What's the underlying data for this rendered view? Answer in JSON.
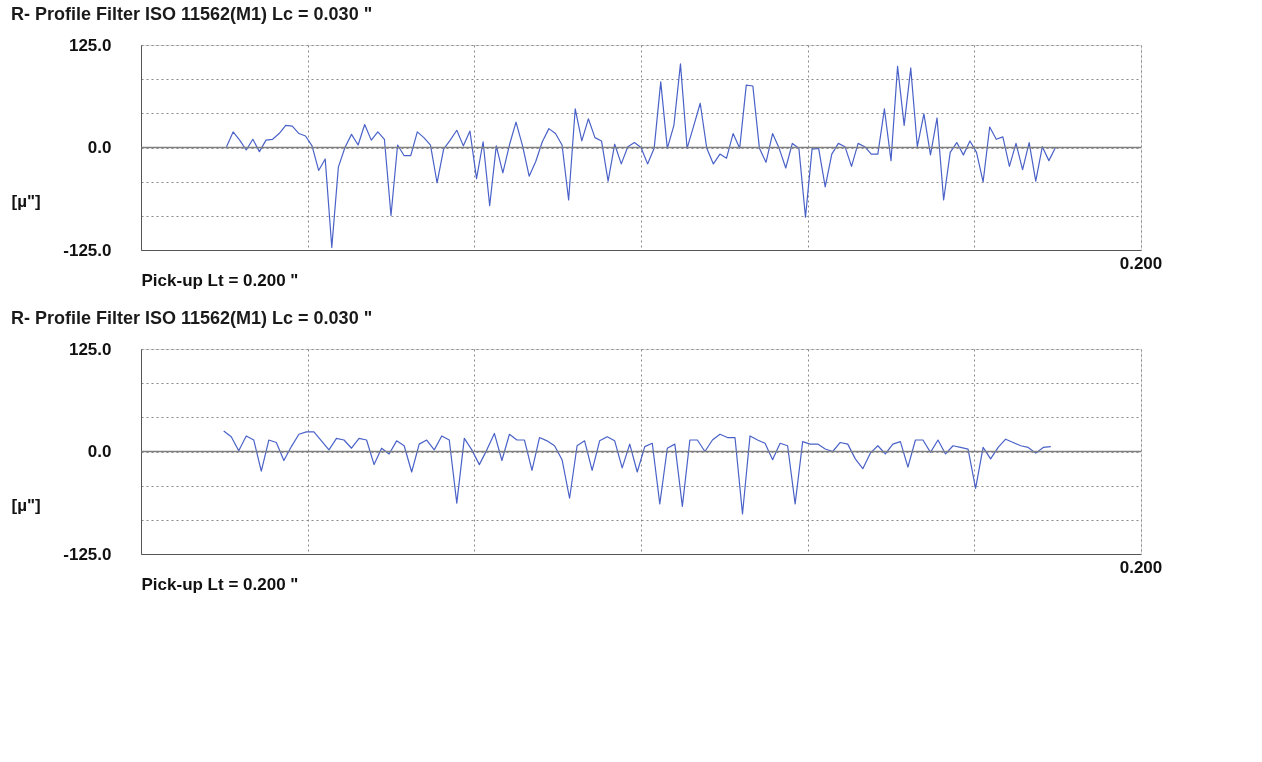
{
  "chart_data": [
    {
      "type": "line",
      "title": "R-  Profile  Filter  ISO 11562(M1)  Lc = 0.030  \"",
      "xlabel": "Pick-up    Lt = 0.200  \"",
      "ylabel": "[µ\"]",
      "annotations": [
        "0.200"
      ],
      "categories": [
        null,
        null,
        null,
        null,
        null,
        null,
        null,
        null,
        null,
        null,
        null,
        null,
        null,
        null,
        null,
        null,
        null,
        null,
        null,
        null,
        null,
        null,
        null,
        null,
        null,
        null,
        null,
        null,
        null,
        null,
        null,
        null,
        null,
        null,
        null,
        null,
        null,
        null,
        null,
        null,
        null,
        null,
        null,
        null,
        null,
        null,
        null,
        null,
        null,
        null,
        null,
        null,
        null,
        null,
        null,
        null,
        null,
        null,
        null,
        null,
        null,
        null,
        null,
        null,
        null,
        null,
        null,
        null,
        null,
        null,
        null,
        null,
        null,
        null,
        null,
        null,
        null,
        null,
        null,
        null,
        null,
        null,
        null,
        null,
        null,
        null,
        null,
        null,
        null,
        null,
        null,
        null,
        null,
        null,
        null,
        null,
        null,
        null,
        null,
        null,
        null,
        null,
        null,
        null,
        null,
        null,
        null,
        null,
        null,
        null,
        null,
        null,
        null,
        null,
        null,
        null,
        null,
        null,
        null,
        null,
        null,
        null,
        null,
        null,
        null,
        null,
        null,
        null,
        null,
        null,
        null,
        null,
        null,
        null,
        null,
        null,
        null,
        null,
        null,
        null,
        null,
        null,
        null,
        null,
        null,
        null,
        null,
        null,
        null,
        null,
        null,
        null,
        null
      ],
      "series": [
        {
          "color": "#4a62c8",
          "values": [
            null,
            null,
            null,
            null,
            null,
            null,
            null,
            null,
            null,
            null,
            null,
            null,
            null,
            1,
            19,
            9,
            -3,
            10,
            -5,
            9,
            10,
            17,
            27,
            26,
            17,
            14,
            2,
            -28,
            -14,
            -122,
            -24,
            0,
            16,
            3,
            28,
            9,
            19,
            10,
            -83,
            3,
            -10,
            -10,
            19,
            12,
            3,
            -43,
            -2,
            9,
            21,
            2,
            20,
            -38,
            7,
            -71,
            2,
            -31,
            3,
            31,
            2,
            -35,
            -17,
            7,
            23,
            17,
            3,
            -64,
            47,
            8,
            35,
            12,
            8,
            -41,
            4,
            -20,
            1,
            6,
            0,
            -20,
            -1,
            80,
            -1,
            27,
            102,
            -1,
            26,
            54,
            -1,
            -20,
            -8,
            -13,
            17,
            -1,
            76,
            75,
            -1,
            -18,
            17,
            -1,
            -25,
            5,
            -1,
            -85,
            -2,
            -1,
            -48,
            -8,
            5,
            1,
            -23,
            5,
            1,
            -8,
            -8,
            47,
            -16,
            99,
            27,
            97,
            1,
            41,
            -9,
            36,
            -64,
            -6,
            6,
            -9,
            8,
            -6,
            -42,
            25,
            10,
            13,
            -23,
            5,
            -27,
            6,
            -41,
            1,
            -16,
            0,
            null,
            null,
            null,
            null,
            null,
            null,
            null,
            null,
            null,
            null,
            null,
            null,
            null
          ]
        }
      ],
      "ylim": [
        -125,
        125
      ],
      "yticks": [
        {
          "value": -125,
          "label": "-125.0"
        },
        {
          "value": -83.33,
          "label": null
        },
        {
          "value": -41.67,
          "label": null
        },
        {
          "value": 0,
          "label": "0.0"
        },
        {
          "value": 41.67,
          "label": null
        },
        {
          "value": 83.33,
          "label": null
        },
        {
          "value": 125,
          "label": "125.0"
        }
      ],
      "ref_lines": [
        {
          "axis": "y",
          "value": 0,
          "color": "#808080"
        }
      ],
      "tick_labels": "y",
      "grid": true,
      "marker": "none",
      "line_style": "solid"
    },
    {
      "type": "line",
      "title": "R-  Profile  Filter  ISO 11562(M1)  Lc = 0.030  \"",
      "xlabel": "Pick-up    Lt = 0.200  \"",
      "ylabel": "[µ\"]",
      "annotations": [
        "0.200"
      ],
      "categories": [
        null,
        null,
        null,
        null,
        null,
        null,
        null,
        null,
        null,
        null,
        null,
        null,
        null,
        null,
        null,
        null,
        null,
        null,
        null,
        null,
        null,
        null,
        null,
        null,
        null,
        null,
        null,
        null,
        null,
        null,
        null,
        null,
        null,
        null,
        null,
        null,
        null,
        null,
        null,
        null,
        null,
        null,
        null,
        null,
        null,
        null,
        null,
        null,
        null,
        null,
        null,
        null,
        null,
        null,
        null,
        null,
        null,
        null,
        null,
        null,
        null,
        null,
        null,
        null,
        null,
        null,
        null,
        null,
        null,
        null,
        null,
        null,
        null,
        null,
        null,
        null,
        null,
        null,
        null,
        null,
        null,
        null,
        null,
        null,
        null,
        null,
        null,
        null,
        null,
        null,
        null,
        null,
        null,
        null,
        null,
        null,
        null,
        null,
        null,
        null,
        null,
        null,
        null,
        null,
        null,
        null,
        null,
        null,
        null,
        null,
        null,
        null,
        null,
        null,
        null,
        null,
        null,
        null,
        null,
        null,
        null,
        null,
        null,
        null,
        null,
        null,
        null,
        null,
        null,
        null,
        null,
        null,
        null,
        null
      ],
      "series": [
        {
          "color": "#4a62c8",
          "values": [
            null,
            null,
            null,
            null,
            null,
            null,
            null,
            null,
            null,
            null,
            null,
            25,
            18,
            1,
            19,
            14,
            -24,
            14,
            11,
            -11,
            6,
            21,
            24,
            24,
            13,
            2,
            16,
            14,
            4,
            16,
            14,
            -16,
            4,
            -3,
            13,
            7,
            -25,
            9,
            14,
            2,
            19,
            14,
            -63,
            16,
            2,
            -16,
            2,
            22,
            -11,
            21,
            14,
            14,
            -23,
            17,
            13,
            7,
            -10,
            -57,
            7,
            13,
            -23,
            13,
            18,
            13,
            -20,
            9,
            -25,
            6,
            10,
            -64,
            4,
            9,
            -67,
            14,
            14,
            0,
            14,
            21,
            17,
            17,
            -76,
            19,
            14,
            10,
            -10,
            10,
            7,
            -64,
            12,
            9,
            9,
            3,
            0,
            11,
            9,
            -9,
            -21,
            -2,
            7,
            -3,
            9,
            12,
            -19,
            14,
            14,
            -1,
            14,
            -3,
            7,
            5,
            3,
            -45,
            5,
            -9,
            5,
            15,
            11,
            7,
            5,
            -2,
            5,
            6,
            null,
            null,
            null,
            null,
            null,
            null,
            null,
            null,
            null,
            null,
            null,
            null
          ]
        }
      ],
      "ylim": [
        -125,
        125
      ],
      "yticks": [
        {
          "value": -125,
          "label": "-125.0"
        },
        {
          "value": -83.33,
          "label": null
        },
        {
          "value": -41.67,
          "label": null
        },
        {
          "value": 0,
          "label": "0.0"
        },
        {
          "value": 41.67,
          "label": null
        },
        {
          "value": 83.33,
          "label": null
        },
        {
          "value": 125,
          "label": "125.0"
        }
      ],
      "ref_lines": [
        {
          "axis": "y",
          "value": 0,
          "color": "#808080"
        }
      ],
      "tick_labels": "y",
      "grid": true,
      "marker": "none",
      "line_style": "solid"
    }
  ]
}
